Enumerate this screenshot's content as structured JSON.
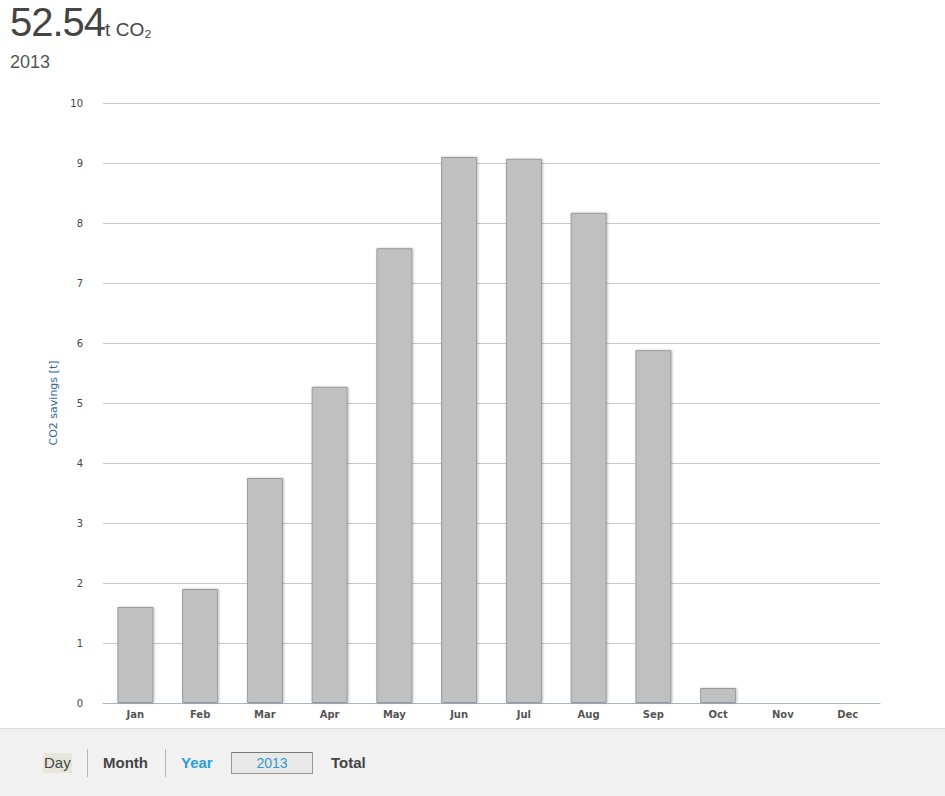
{
  "chart_data": {
    "type": "bar",
    "title": "52.54",
    "title_unit": "t CO₂",
    "subtitle": "2013",
    "y_label": "CO2 savings [t]",
    "categories": [
      "Jan",
      "Feb",
      "Mar",
      "Apr",
      "May",
      "Jun",
      "Jul",
      "Aug",
      "Sep",
      "Oct",
      "Nov",
      "Dec"
    ],
    "values": [
      1.6,
      1.9,
      3.75,
      5.27,
      7.58,
      9.1,
      9.07,
      8.17,
      5.88,
      0.25,
      0,
      0
    ],
    "color": "#c0c0c0",
    "ylim": [
      0,
      10
    ],
    "yticks": [
      0,
      1,
      2,
      3,
      4,
      5,
      6,
      7,
      8,
      9,
      10
    ],
    "grid": true
  },
  "controls": {
    "buttons": [
      "Day",
      "Month",
      "Year",
      "Total"
    ],
    "year_field": "2013"
  }
}
